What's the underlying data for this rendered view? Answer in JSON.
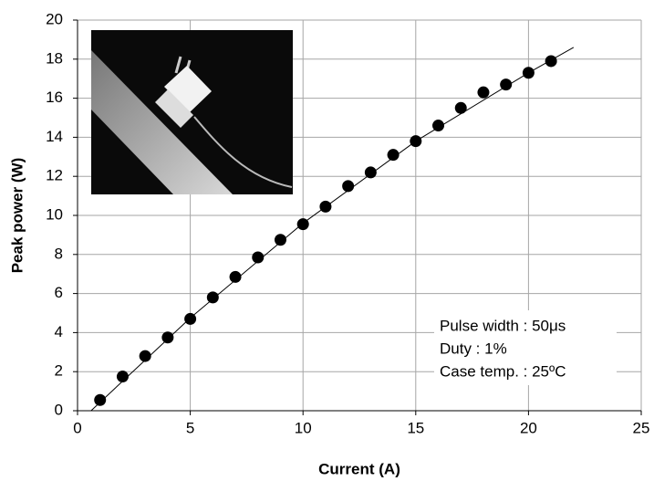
{
  "chart_data": {
    "type": "scatter",
    "x_label": "Current (A)",
    "y_label": "Peak power (W)",
    "xlim": [
      0,
      25
    ],
    "xticks": [
      0,
      5,
      10,
      15,
      20,
      25
    ],
    "ylim": [
      0,
      20
    ],
    "yticks": [
      0,
      2,
      4,
      6,
      8,
      10,
      12,
      14,
      16,
      18,
      20
    ],
    "grid": true,
    "series": [
      {
        "mode": "markers",
        "color": "#000000",
        "x": [
          1,
          2,
          3,
          4,
          5,
          6,
          7,
          8,
          9,
          10,
          11,
          12,
          13,
          14,
          15,
          16,
          17,
          18,
          19,
          20,
          21
        ],
        "values": [
          0.55,
          1.75,
          2.8,
          3.75,
          4.7,
          5.8,
          6.85,
          7.85,
          8.75,
          9.55,
          10.45,
          11.5,
          12.2,
          13.1,
          13.8,
          14.6,
          15.5,
          16.3,
          16.7,
          17.3,
          17.9
        ]
      },
      {
        "mode": "line",
        "color": "#000000",
        "x": [
          0.6,
          5,
          10,
          15,
          20,
          22
        ],
        "values": [
          0,
          4.75,
          9.6,
          13.8,
          17.3,
          18.6
        ]
      }
    ],
    "annotations": [
      "Pulse width : 50μs",
      "Duty : 1%",
      "Case temp. : 25ºC"
    ]
  }
}
